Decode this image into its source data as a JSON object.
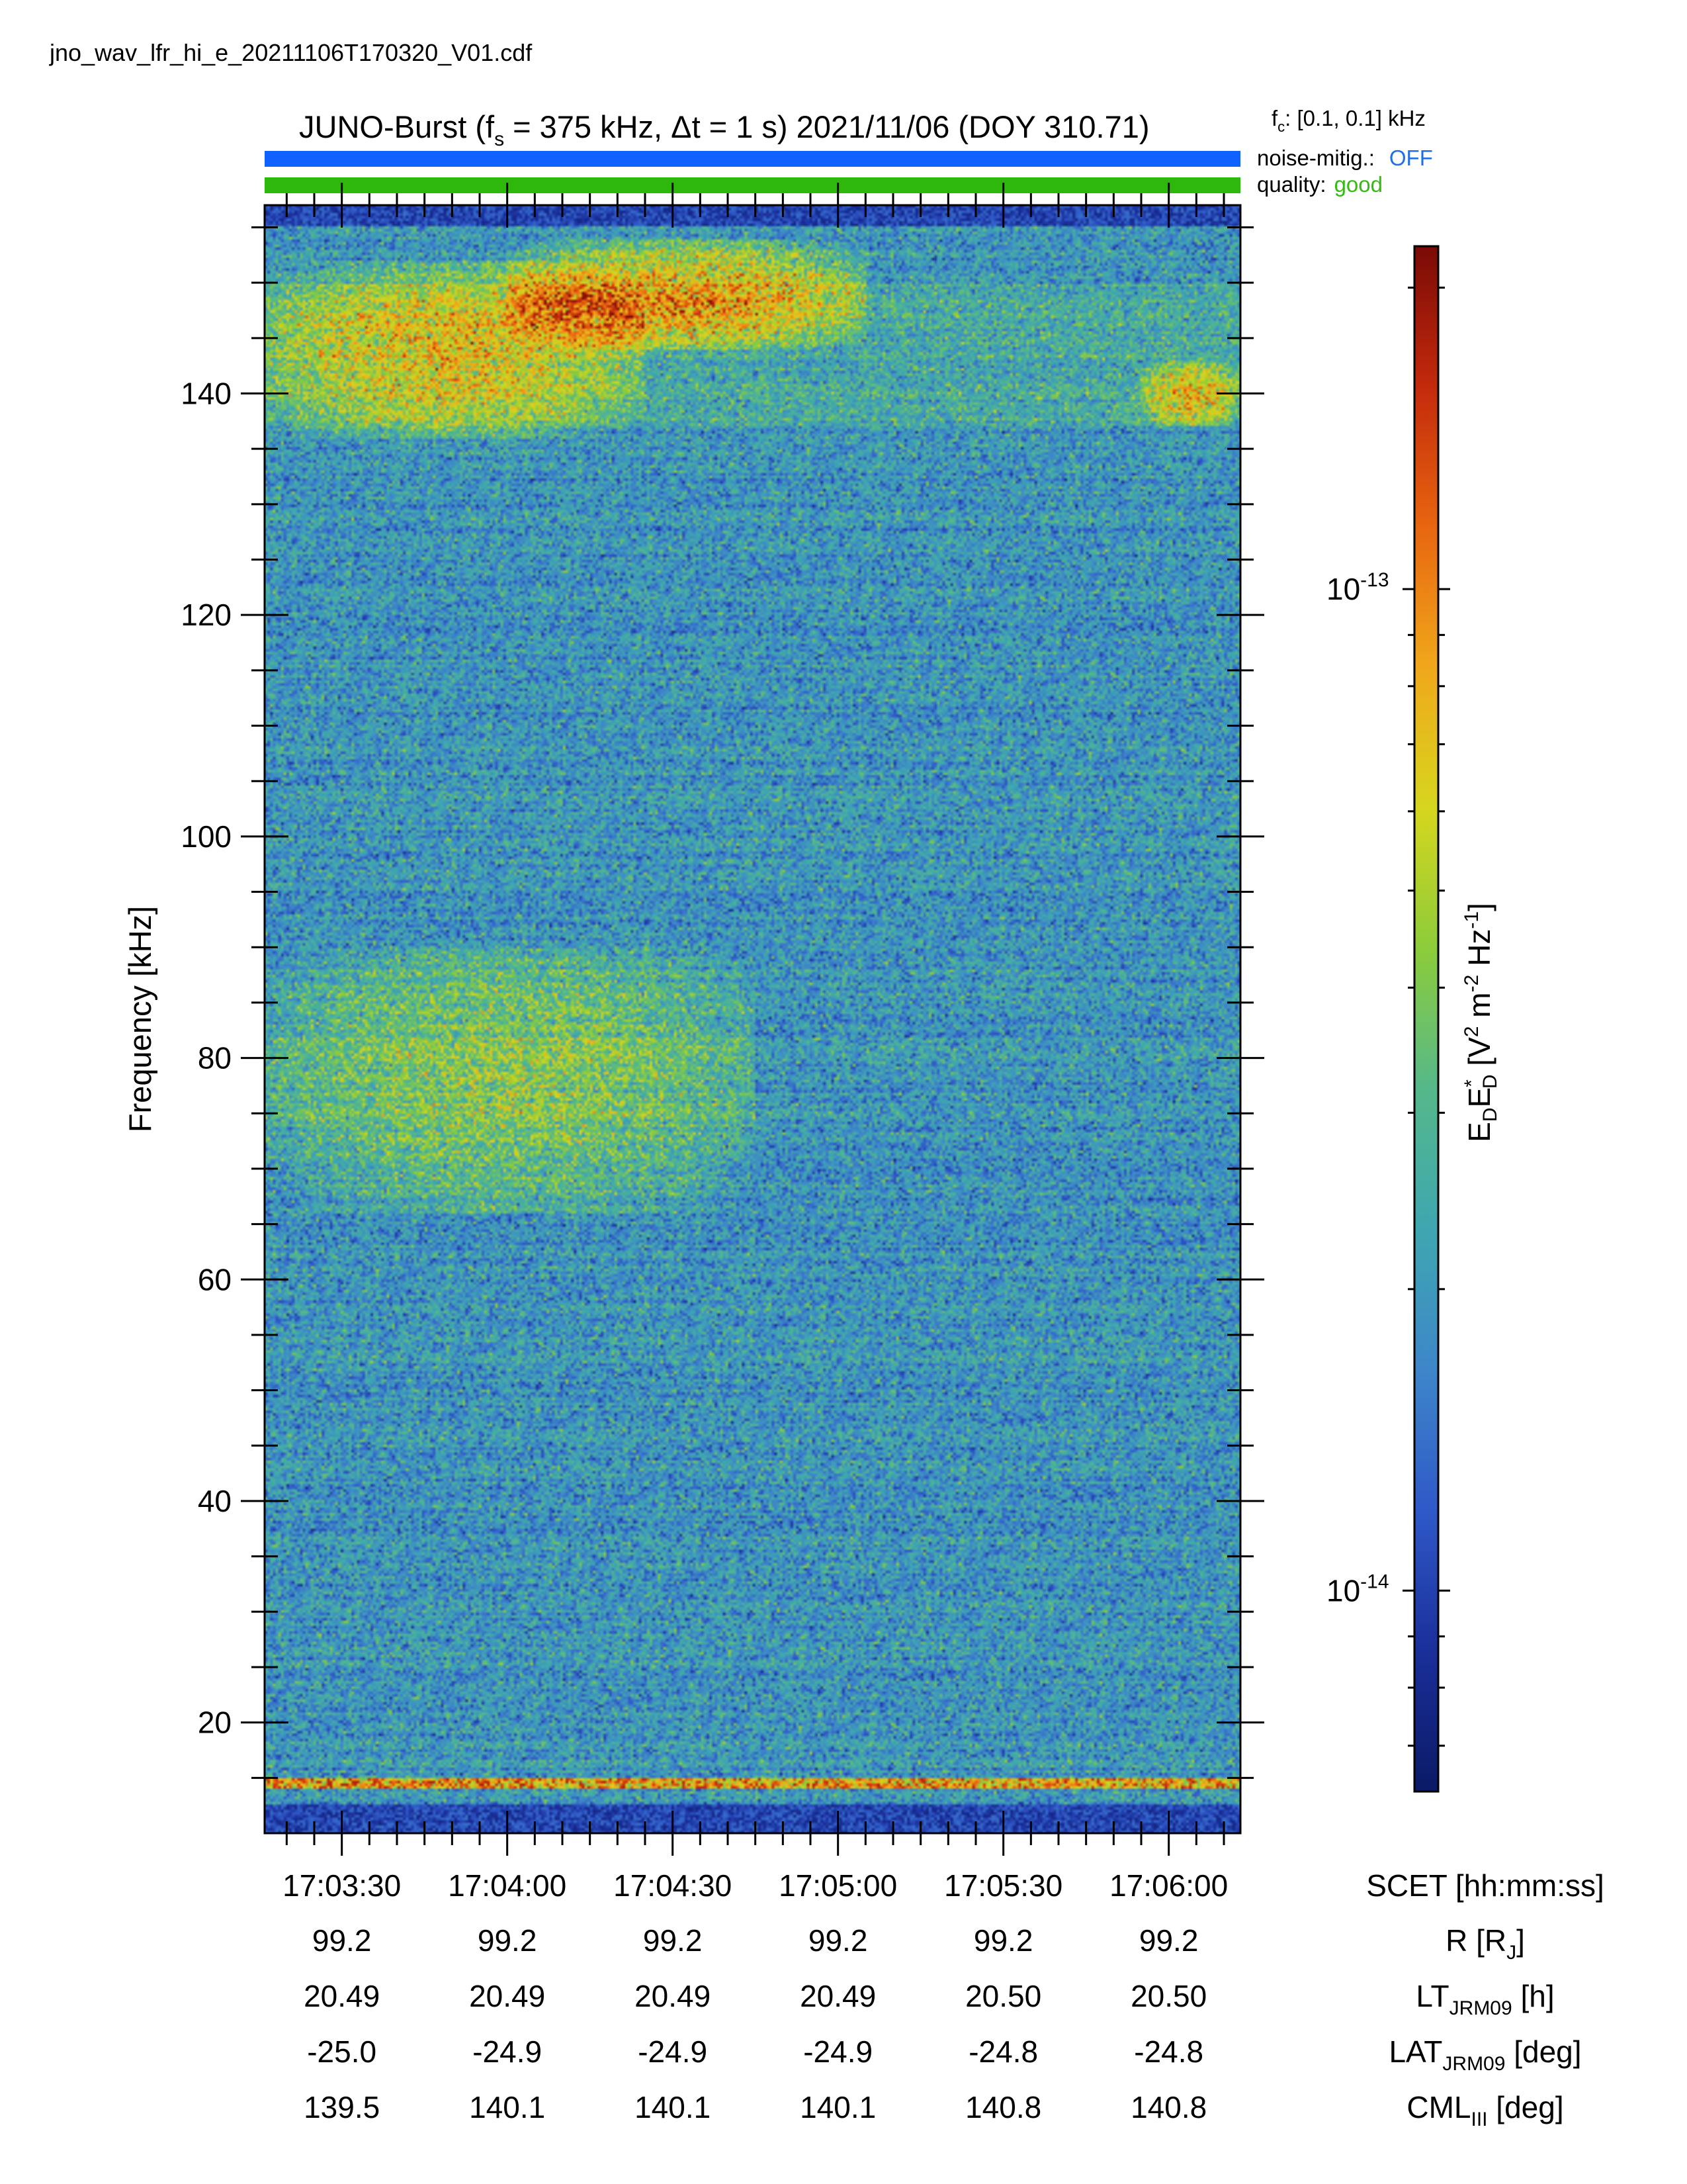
{
  "file_name": "jno_wav_lfr_hi_e_20211106T170320_V01.cdf",
  "title": {
    "prefix": "JUNO-Burst (f",
    "fs_sub": "s",
    "fs_value": " = 375 kHz, ",
    "delta": "Δ",
    "dt_value": "t = 1 s)  2021/11/06 (DOY 310.71)"
  },
  "filter": {
    "prefix": "f",
    "sub": "c",
    "value": ": [0.1, 0.1] kHz"
  },
  "noise_mitigation": {
    "label": "noise-mitig.:",
    "value": "OFF",
    "color": "#1f6fe6"
  },
  "quality": {
    "label": "quality:",
    "value": "good",
    "color": "#33bb11"
  },
  "bar_colors": {
    "noise": "#0f62fe",
    "quality": "#2fb80c"
  },
  "chart_data": {
    "type": "heatmap",
    "xlabel": "SCET [hh:mm:ss]",
    "ylabel": "Frequency [kHz]",
    "x_range": [
      "17:03:16",
      "17:06:13"
    ],
    "ylim": [
      10,
      157
    ],
    "yticks": [
      20,
      40,
      60,
      80,
      100,
      120,
      140
    ],
    "ytick_labels": [
      "20",
      "40",
      "60",
      "80",
      "100",
      "120",
      "140"
    ],
    "xticks": [
      "17:03:30",
      "17:04:00",
      "17:04:30",
      "17:05:00",
      "17:05:30",
      "17:06:00"
    ],
    "colorbar": {
      "label": {
        "e1": "E",
        "e1sub": "D",
        "e2": "E",
        "e2sup": "*",
        "e2sub": "D",
        "unit_open": " [V",
        "sup1": "2",
        "m": " m",
        "sup2": "-2",
        "hz": " Hz",
        "sup3": "-1",
        "unit_close": "]"
      },
      "scale": "log",
      "range": [
        6.3e-15,
        2.2e-13
      ],
      "ticks": [
        {
          "value": 1e-13,
          "base": "10",
          "exp": "-13"
        },
        {
          "value": 1e-14,
          "base": "10",
          "exp": "-14"
        }
      ],
      "colormap": [
        "#0b1a66",
        "#1a2f9a",
        "#2f59c8",
        "#3e86c9",
        "#3ea7b0",
        "#55b88a",
        "#8ccc3a",
        "#d6d61e",
        "#f0a81b",
        "#e8660f",
        "#c32a0c",
        "#7a0a06"
      ]
    },
    "ephemeris": {
      "rows": [
        {
          "name": "R",
          "label": {
            "main": "R [R",
            "sub": "J",
            "tail": "]"
          },
          "values": [
            "99.2",
            "99.2",
            "99.2",
            "99.2",
            "99.2",
            "99.2"
          ]
        },
        {
          "name": "LT",
          "label": {
            "main": "LT",
            "sub": "JRM09",
            "tail": " [h]"
          },
          "values": [
            "20.49",
            "20.49",
            "20.49",
            "20.49",
            "20.50",
            "20.50"
          ]
        },
        {
          "name": "LAT",
          "label": {
            "main": "LAT",
            "sub": "JRM09",
            "tail": " [deg]"
          },
          "values": [
            "-25.0",
            "-24.9",
            "-24.9",
            "-24.9",
            "-24.8",
            "-24.8"
          ]
        },
        {
          "name": "CML",
          "label": {
            "main": "CML",
            "sub": "III",
            "tail": " [deg]"
          },
          "values": [
            "139.5",
            "140.1",
            "140.1",
            "140.1",
            "140.8",
            "140.8"
          ]
        }
      ]
    },
    "bright_features": [
      {
        "t": [
          "17:03:16",
          "17:04:25"
        ],
        "f": [
          136,
          152
        ],
        "strength": 0.75
      },
      {
        "t": [
          "17:04:00",
          "17:05:05"
        ],
        "f": [
          144,
          154
        ],
        "strength": 0.95
      },
      {
        "t": [
          "17:05:55",
          "17:06:13"
        ],
        "f": [
          137,
          143
        ],
        "strength": 0.8
      },
      {
        "t": [
          "17:03:16",
          "17:04:45"
        ],
        "f": [
          66,
          90
        ],
        "strength": 0.55
      }
    ]
  }
}
